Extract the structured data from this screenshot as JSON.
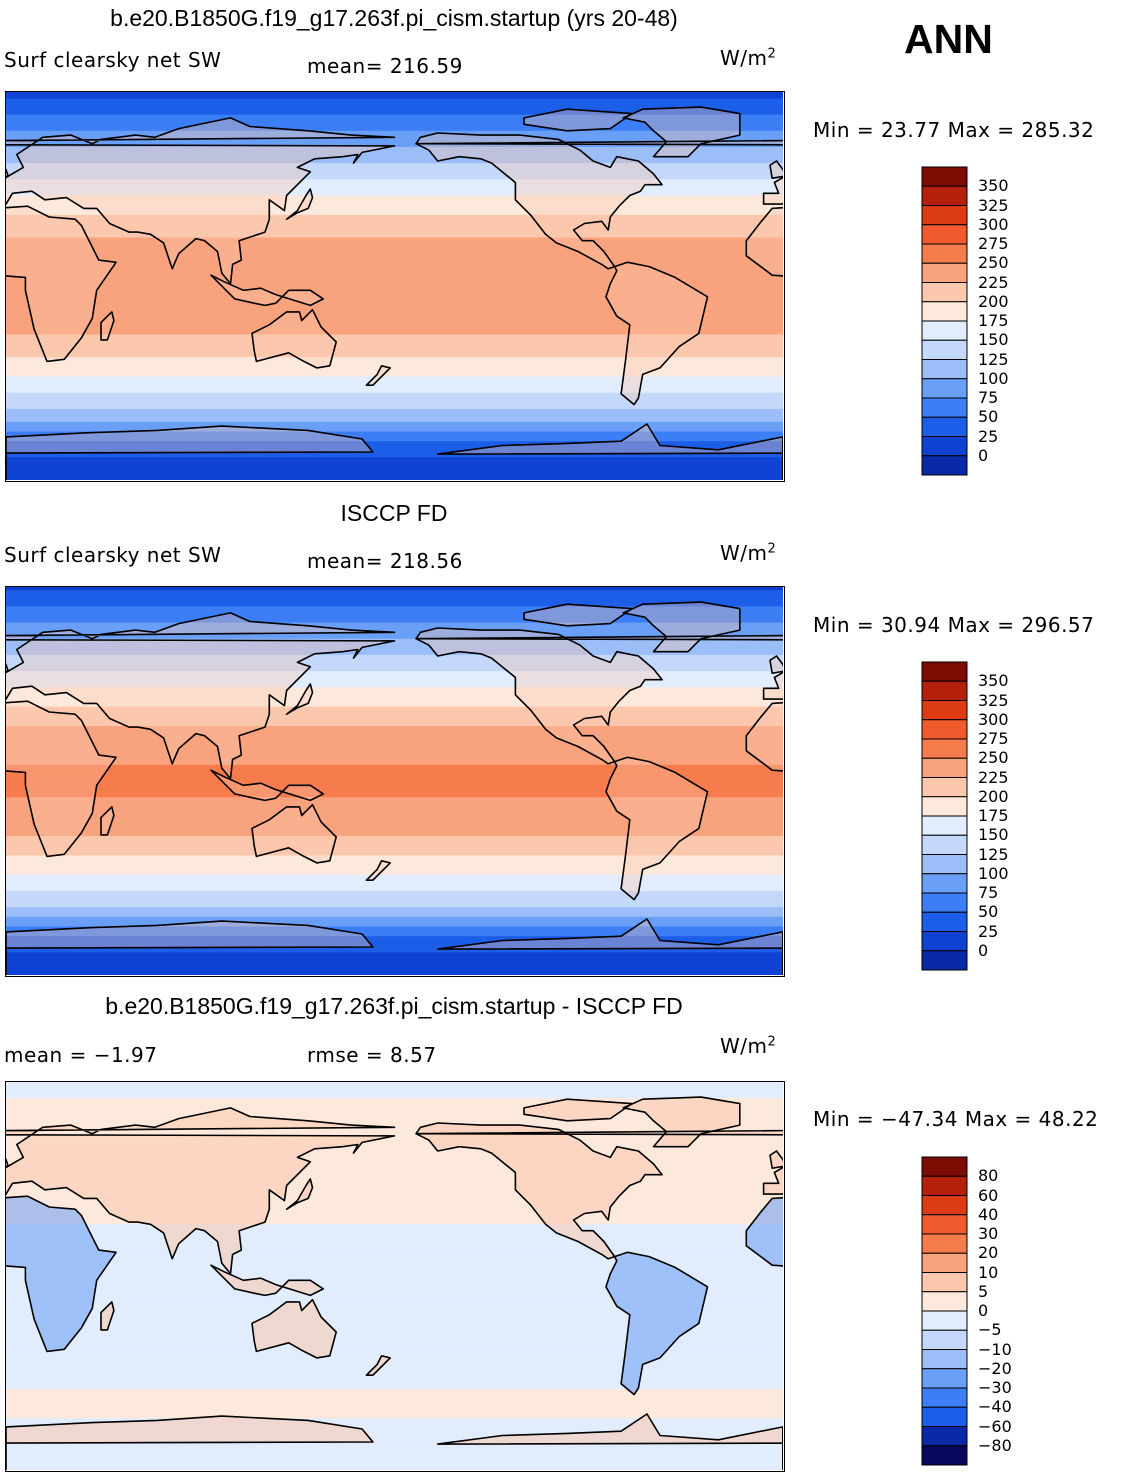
{
  "season": "ANN",
  "colors": {
    "abs_scale": [
      "#08085e",
      "#0a29a8",
      "#0f42d2",
      "#1d5ee8",
      "#3c7ef5",
      "#6a9ff7",
      "#9bbef8",
      "#c3d8fb",
      "#e1ecfd",
      "#fde8dc",
      "#fcc8ad",
      "#f9a37e",
      "#f67c4e",
      "#f05a2c",
      "#dd3b14",
      "#b5200a",
      "#7d0c04"
    ],
    "diff_scale": [
      "#08085e",
      "#0a29a8",
      "#1d5ee8",
      "#3c7ef5",
      "#6a9ff7",
      "#9bbef8",
      "#c3d8fb",
      "#e1ecfd",
      "#fde8dc",
      "#fcc8ad",
      "#f9a37e",
      "#f67c4e",
      "#f05a2c",
      "#dd3b14",
      "#b5200a",
      "#7d0c04"
    ]
  },
  "panels": [
    {
      "title": "b.e20.B1850G.f19_g17.263f.pi_cism.startup (yrs 20-48)",
      "variable": "Surf clearsky net SW",
      "stat1": "mean=  216.59",
      "stat2": "",
      "units": "W/m",
      "units_sup": "2",
      "minmax": "Min =   23.77  Max =  285.32",
      "colorbar_labels": [
        "350",
        "325",
        "300",
        "275",
        "250",
        "225",
        "200",
        "175",
        "150",
        "125",
        "100",
        "75",
        "50",
        "25",
        "0"
      ]
    },
    {
      "title": "ISCCP FD",
      "variable": "Surf clearsky net SW",
      "stat1": "mean=  218.56",
      "stat2": "",
      "units": "W/m",
      "units_sup": "2",
      "minmax": "Min =   30.94  Max =  296.57",
      "colorbar_labels": [
        "350",
        "325",
        "300",
        "275",
        "250",
        "225",
        "200",
        "175",
        "150",
        "125",
        "100",
        "75",
        "50",
        "25",
        "0"
      ]
    },
    {
      "title": "b.e20.B1850G.f19_g17.263f.pi_cism.startup - ISCCP FD",
      "variable": "",
      "stat1": "mean =   −1.97",
      "stat2": "rmse =    8.57",
      "units": "W/m",
      "units_sup": "2",
      "minmax": "Min = −47.34  Max =   48.22",
      "colorbar_labels": [
        "80",
        "60",
        "40",
        "30",
        "20",
        "10",
        "5",
        "0",
        "−5",
        "−10",
        "−20",
        "−30",
        "−40",
        "−60",
        "−80"
      ]
    }
  ],
  "chart_data": [
    {
      "type": "heatmap",
      "title": "b.e20.B1850G.f19_g17.263f.pi_cism.startup (yrs 20-48)",
      "variable": "Surf clearsky net SW",
      "units": "W/m2",
      "mean": 216.59,
      "min": 23.77,
      "max": 285.32,
      "levels": [
        0,
        25,
        50,
        75,
        100,
        125,
        150,
        175,
        200,
        225,
        250,
        275,
        300,
        325,
        350
      ],
      "zonal_profile": {
        "lat": [
          90,
          75,
          60,
          45,
          30,
          15,
          0,
          -15,
          -30,
          -45,
          -60,
          -75,
          -90
        ],
        "value": [
          40,
          90,
          140,
          190,
          235,
          265,
          275,
          265,
          235,
          190,
          140,
          60,
          25
        ]
      }
    },
    {
      "type": "heatmap",
      "title": "ISCCP FD",
      "variable": "Surf clearsky net SW",
      "units": "W/m2",
      "mean": 218.56,
      "min": 30.94,
      "max": 296.57,
      "levels": [
        0,
        25,
        50,
        75,
        100,
        125,
        150,
        175,
        200,
        225,
        250,
        275,
        300,
        325,
        350
      ],
      "zonal_profile": {
        "lat": [
          90,
          75,
          60,
          45,
          30,
          15,
          0,
          -15,
          -30,
          -45,
          -60,
          -75,
          -90
        ],
        "value": [
          45,
          95,
          145,
          195,
          240,
          270,
          280,
          270,
          240,
          195,
          145,
          60,
          30
        ]
      }
    },
    {
      "type": "heatmap",
      "title": "b.e20.B1850G.f19_g17.263f.pi_cism.startup - ISCCP FD",
      "units": "W/m2",
      "mean": -1.97,
      "rmse": 8.57,
      "min": -47.34,
      "max": 48.22,
      "levels": [
        -80,
        -60,
        -40,
        -30,
        -20,
        -10,
        -5,
        0,
        5,
        10,
        20,
        30,
        40,
        60,
        80
      ],
      "zonal_profile": {
        "lat": [
          90,
          75,
          60,
          45,
          30,
          15,
          0,
          -15,
          -30,
          -45,
          -60,
          -75,
          -90
        ],
        "value": [
          -3,
          3,
          4,
          3,
          2,
          -3,
          -5,
          -4,
          -3,
          -3,
          3,
          -5,
          -3
        ]
      }
    }
  ]
}
